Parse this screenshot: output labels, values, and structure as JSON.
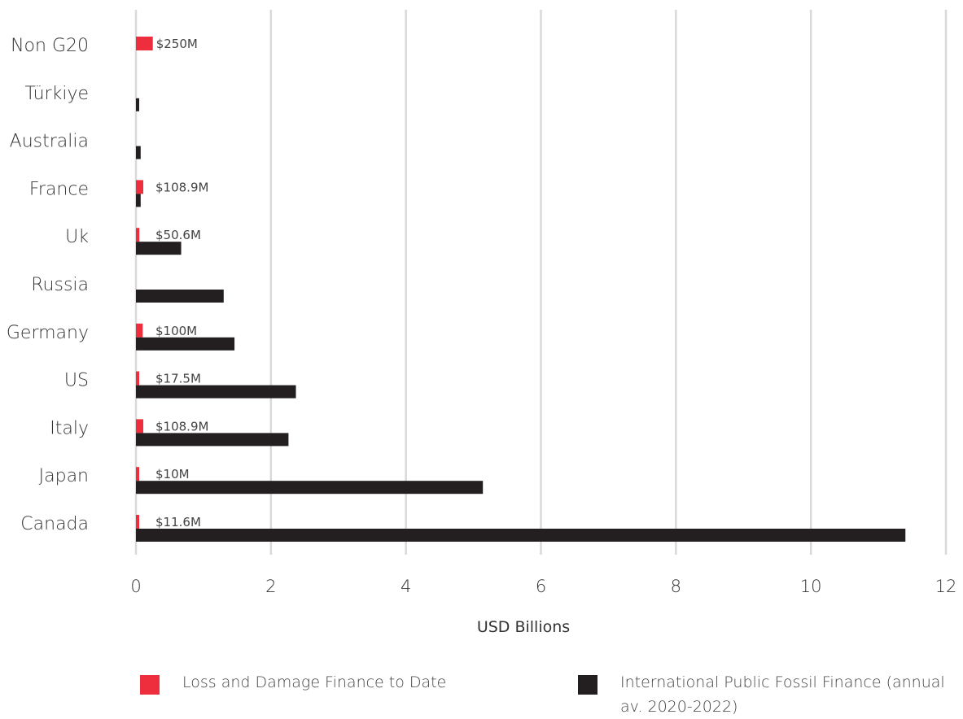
{
  "chart_data": {
    "type": "bar",
    "orientation": "horizontal",
    "categories": [
      "Non G20",
      "Türkiye",
      "Australia",
      "France",
      "Uk",
      "Russia",
      "Germany",
      "US",
      "Italy",
      "Japan",
      "Canada"
    ],
    "series": [
      {
        "name": "Loss and Damage Finance to Date",
        "color": "#ee2e3c",
        "values": [
          0.25,
          null,
          null,
          0.1089,
          0.0506,
          null,
          0.1,
          0.0175,
          0.1089,
          0.01,
          0.0116
        ],
        "labels": [
          "$250M",
          "",
          "",
          "$108.9M",
          "$50.6M",
          "",
          "$100M",
          "$17.5M",
          "$108.9M",
          "$10M",
          "$11.6M"
        ]
      },
      {
        "name": "International Public Fossil Finance (annual av. 2020-2022)",
        "color": "#231f20",
        "values": [
          null,
          0.04,
          0.07,
          0.07,
          0.67,
          1.3,
          1.46,
          2.37,
          2.26,
          5.14,
          11.4
        ]
      }
    ],
    "xlabel": "USD Billions",
    "ylabel": "",
    "xlim": [
      0,
      12
    ],
    "xticks": [
      "0",
      "2",
      "4",
      "6",
      "8",
      "10",
      "12"
    ],
    "grid": true,
    "legend_position": "bottom"
  }
}
